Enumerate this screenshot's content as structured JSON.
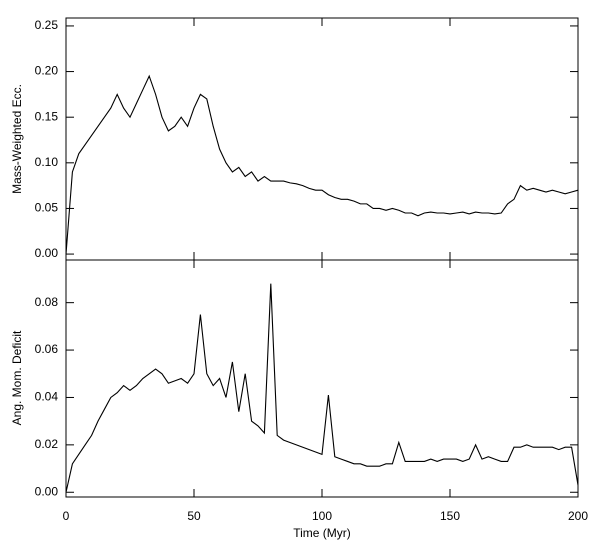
{
  "chart_data": [
    {
      "type": "line",
      "y_label": "Mass-Weighted Ecc.",
      "color": "#000000",
      "x": [
        0,
        2.5,
        5,
        7.5,
        10,
        12.5,
        15,
        17.5,
        20,
        22.5,
        25,
        27.5,
        30,
        32.5,
        35,
        37.5,
        40,
        42.5,
        45,
        47.5,
        50,
        52.5,
        55,
        57.5,
        60,
        62.5,
        65,
        67.5,
        70,
        72.5,
        75,
        77.5,
        80,
        82.5,
        85,
        87.5,
        90,
        92.5,
        95,
        97.5,
        100,
        102.5,
        105,
        107.5,
        110,
        112.5,
        115,
        117.5,
        120,
        122.5,
        125,
        127.5,
        130,
        132.5,
        135,
        137.5,
        140,
        142.5,
        145,
        147.5,
        150,
        152.5,
        155,
        157.5,
        160,
        162.5,
        165,
        167.5,
        170,
        172.5,
        175,
        177.5,
        180,
        182.5,
        185,
        187.5,
        190,
        192.5,
        195,
        197.5,
        200
      ],
      "values": [
        0.0,
        0.09,
        0.11,
        0.12,
        0.13,
        0.14,
        0.15,
        0.16,
        0.175,
        0.16,
        0.15,
        0.165,
        0.18,
        0.195,
        0.175,
        0.15,
        0.135,
        0.14,
        0.15,
        0.14,
        0.16,
        0.175,
        0.17,
        0.14,
        0.115,
        0.1,
        0.09,
        0.095,
        0.085,
        0.09,
        0.08,
        0.085,
        0.08,
        0.08,
        0.08,
        0.078,
        0.077,
        0.075,
        0.072,
        0.07,
        0.07,
        0.065,
        0.062,
        0.06,
        0.06,
        0.058,
        0.055,
        0.055,
        0.05,
        0.05,
        0.048,
        0.05,
        0.048,
        0.045,
        0.045,
        0.042,
        0.045,
        0.046,
        0.045,
        0.045,
        0.044,
        0.045,
        0.046,
        0.044,
        0.046,
        0.045,
        0.045,
        0.044,
        0.045,
        0.055,
        0.06,
        0.075,
        0.07,
        0.072,
        0.07,
        0.068,
        0.07,
        0.068,
        0.066,
        0.068,
        0.07
      ],
      "xlim": [
        0,
        200
      ],
      "ylim": [
        -0.0065,
        0.2587
      ],
      "yticks": [
        {
          "value": 0,
          "label": "0.00"
        },
        0.05,
        {
          "value": 0.1,
          "label": "0.10"
        },
        0.15,
        {
          "value": 0.2,
          "label": "0.20"
        },
        0.25
      ]
    },
    {
      "type": "line",
      "x_label": "Time (Myr)",
      "y_label": "Ang. Mom. Deficit",
      "color": "#000000",
      "x": [
        0,
        2.5,
        5,
        7.5,
        10,
        12.5,
        15,
        17.5,
        20,
        22.5,
        25,
        27.5,
        30,
        32.5,
        35,
        37.5,
        40,
        42.5,
        45,
        47.5,
        50,
        52.5,
        55,
        57.5,
        60,
        62.5,
        65,
        67.5,
        70,
        72.5,
        75,
        77.5,
        80,
        82.5,
        85,
        87.5,
        90,
        92.5,
        95,
        97.5,
        100,
        102.5,
        105,
        107.5,
        110,
        112.5,
        115,
        117.5,
        120,
        122.5,
        125,
        127.5,
        130,
        132.5,
        135,
        137.5,
        140,
        142.5,
        145,
        147.5,
        150,
        152.5,
        155,
        157.5,
        160,
        162.5,
        165,
        167.5,
        170,
        172.5,
        175,
        177.5,
        180,
        182.5,
        185,
        187.5,
        190,
        192.5,
        195,
        197.5,
        200
      ],
      "values": [
        0.0,
        0.012,
        0.016,
        0.02,
        0.024,
        0.03,
        0.035,
        0.04,
        0.042,
        0.045,
        0.043,
        0.045,
        0.048,
        0.05,
        0.052,
        0.05,
        0.046,
        0.047,
        0.048,
        0.046,
        0.05,
        0.075,
        0.05,
        0.045,
        0.048,
        0.04,
        0.055,
        0.034,
        0.05,
        0.03,
        0.028,
        0.025,
        0.088,
        0.024,
        0.022,
        0.021,
        0.02,
        0.019,
        0.018,
        0.017,
        0.016,
        0.041,
        0.015,
        0.014,
        0.013,
        0.012,
        0.012,
        0.011,
        0.011,
        0.011,
        0.012,
        0.012,
        0.021,
        0.013,
        0.013,
        0.013,
        0.013,
        0.014,
        0.013,
        0.014,
        0.014,
        0.014,
        0.013,
        0.014,
        0.02,
        0.014,
        0.015,
        0.014,
        0.013,
        0.013,
        0.019,
        0.019,
        0.02,
        0.019,
        0.019,
        0.019,
        0.019,
        0.018,
        0.019,
        0.019,
        0.003
      ],
      "xlim": [
        0,
        200
      ],
      "xticks": [
        0,
        50,
        100,
        150,
        200
      ],
      "ylim": [
        -0.002,
        0.098
      ],
      "yticks": [
        {
          "value": 0,
          "label": "0.00"
        },
        0.02,
        0.04,
        0.06,
        0.08
      ]
    }
  ]
}
